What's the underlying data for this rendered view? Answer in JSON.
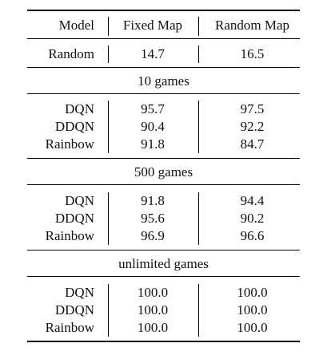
{
  "table": {
    "header": {
      "model": "Model",
      "fixed": "Fixed Map",
      "random": "Random Map"
    },
    "baseline": {
      "model": "Random",
      "fixed": "14.7",
      "random": "16.5"
    },
    "sections": [
      {
        "title": "10 games",
        "rows": [
          {
            "model": "DQN",
            "fixed": "95.7",
            "random": "97.5"
          },
          {
            "model": "DDQN",
            "fixed": "90.4",
            "random": "92.2"
          },
          {
            "model": "Rainbow",
            "fixed": "91.8",
            "random": "84.7"
          }
        ]
      },
      {
        "title": "500 games",
        "rows": [
          {
            "model": "DQN",
            "fixed": "91.8",
            "random": "94.4"
          },
          {
            "model": "DDQN",
            "fixed": "95.6",
            "random": "90.2"
          },
          {
            "model": "Rainbow",
            "fixed": "96.9",
            "random": "96.6"
          }
        ]
      },
      {
        "title": "unlimited games",
        "rows": [
          {
            "model": "DQN",
            "fixed": "100.0",
            "random": "100.0"
          },
          {
            "model": "DDQN",
            "fixed": "100.0",
            "random": "100.0"
          },
          {
            "model": "Rainbow",
            "fixed": "100.0",
            "random": "100.0"
          }
        ]
      }
    ]
  }
}
